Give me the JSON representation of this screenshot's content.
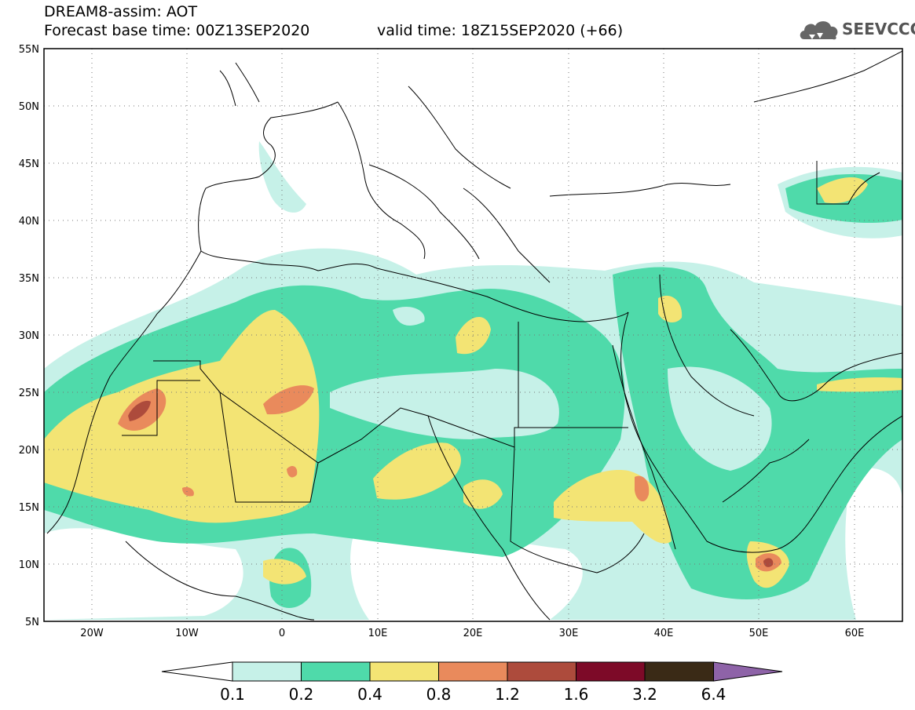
{
  "header": {
    "title": "DREAM8-assim: AOT",
    "base_time": "Forecast base time: 00Z13SEP2020",
    "valid_time": "valid time: 18Z15SEP2020 (+66)"
  },
  "logo": {
    "text": "SEEVCCC",
    "icon": "cloud-icon",
    "color": "#666666"
  },
  "map": {
    "lon_range": [
      -25,
      65
    ],
    "lat_range": [
      5,
      55
    ],
    "lat_ticks": [
      "55N",
      "50N",
      "45N",
      "40N",
      "35N",
      "30N",
      "25N",
      "20N",
      "15N",
      "10N",
      "5N"
    ],
    "lon_ticks": [
      "20W",
      "10W",
      "0",
      "10E",
      "20E",
      "30E",
      "40E",
      "50E",
      "60E"
    ],
    "grid": "dotted"
  },
  "colorbar": {
    "labels": [
      "0.1",
      "0.2",
      "0.4",
      "0.8",
      "1.2",
      "1.6",
      "3.2",
      "6.4"
    ],
    "colors": [
      "#ffffff",
      "#c6f1e8",
      "#4fdaaa",
      "#f3e474",
      "#e98a5c",
      "#ad4b3c",
      "#7d0a28",
      "#3a2a16",
      "#8e63a8"
    ]
  }
}
